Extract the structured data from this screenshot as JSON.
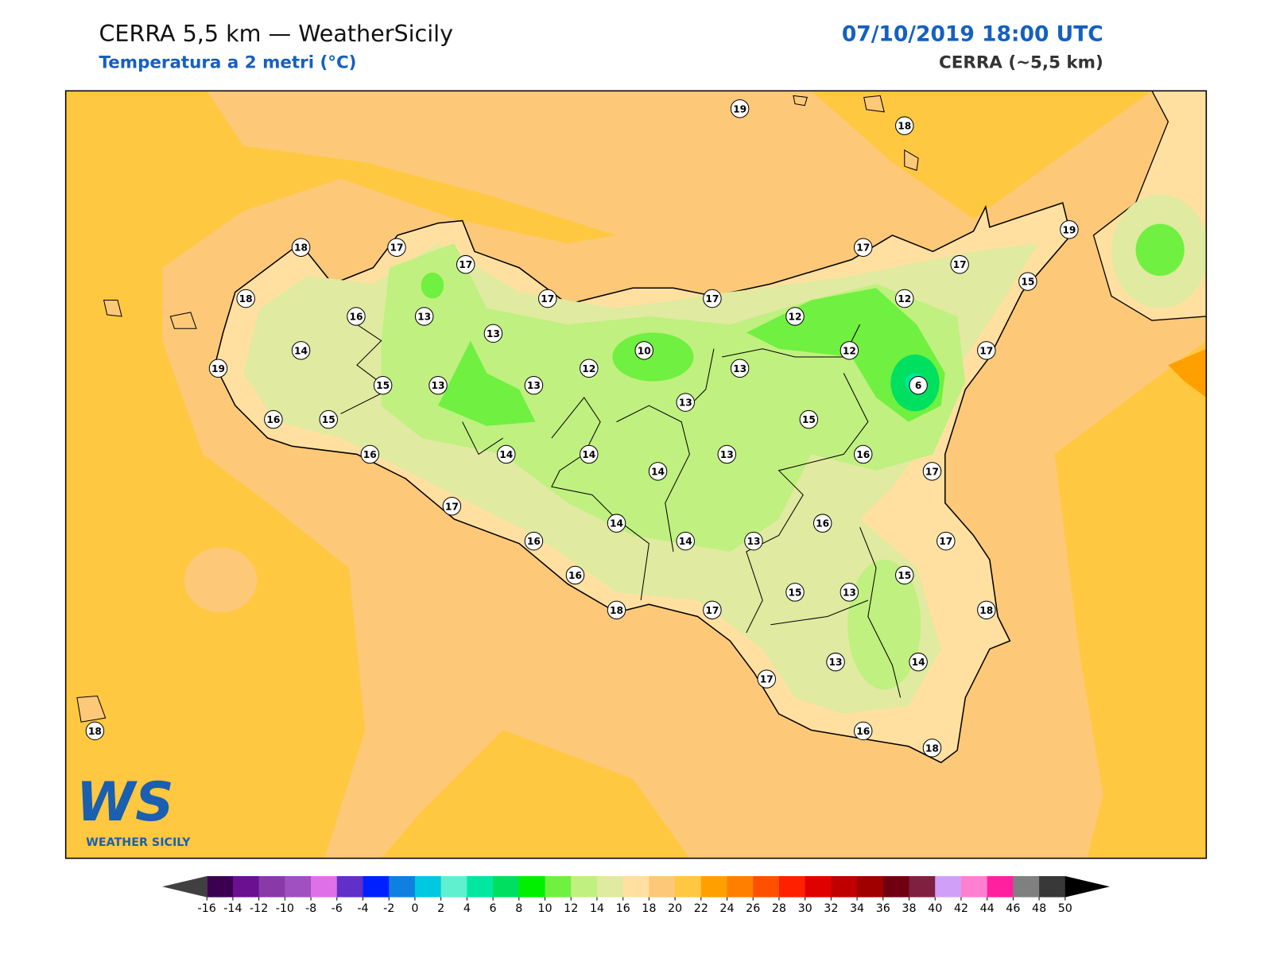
{
  "header": {
    "title": "CERRA 5,5 km — WeatherSicily",
    "subtitle": "Temperatura a 2 metri (°C)",
    "datetime": "07/10/2019 18:00 UTC",
    "model": "CERRA (~5,5 km)"
  },
  "stations": [
    19,
    18,
    18,
    17,
    17,
    17,
    19,
    17,
    15,
    18,
    17,
    17,
    12,
    16,
    13,
    12,
    13,
    14,
    10,
    12,
    17,
    19,
    12,
    13,
    15,
    13,
    13,
    6,
    13,
    16,
    15,
    15,
    16,
    14,
    14,
    13,
    16,
    14,
    17,
    17,
    16,
    14,
    16,
    14,
    13,
    17,
    16,
    15,
    15,
    13,
    18,
    17,
    18,
    13,
    14,
    17,
    18,
    16,
    18
  ],
  "colorbar": {
    "ticks": [
      -16,
      -14,
      -12,
      -10,
      -8,
      -6,
      -4,
      -2,
      0,
      2,
      4,
      6,
      8,
      10,
      12,
      14,
      16,
      18,
      20,
      22,
      24,
      26,
      28,
      30,
      32,
      34,
      36,
      38,
      40,
      42,
      44,
      46,
      48,
      50
    ],
    "colors": [
      "#3b0050",
      "#6a1090",
      "#8a3aa8",
      "#a050c0",
      "#e070e8",
      "#6030c8",
      "#0020ff",
      "#1080e0",
      "#00c8e0",
      "#60f0d0",
      "#00e8a0",
      "#00e060",
      "#00f000",
      "#70f040",
      "#c0f080",
      "#e0eaa0",
      "#ffe0a0",
      "#fdc878",
      "#ffc840",
      "#ffa000",
      "#ff8000",
      "#ff5000",
      "#ff2000",
      "#e00000",
      "#c00000",
      "#a00000",
      "#700010",
      "#802040",
      "#d0a0f8",
      "#ff80d0",
      "#ff20a0",
      "#808080",
      "#383838"
    ],
    "under_color": "#404040",
    "over_color": "#000000"
  },
  "logo": {
    "mark": "WS",
    "name": "WEATHER SICILY"
  }
}
